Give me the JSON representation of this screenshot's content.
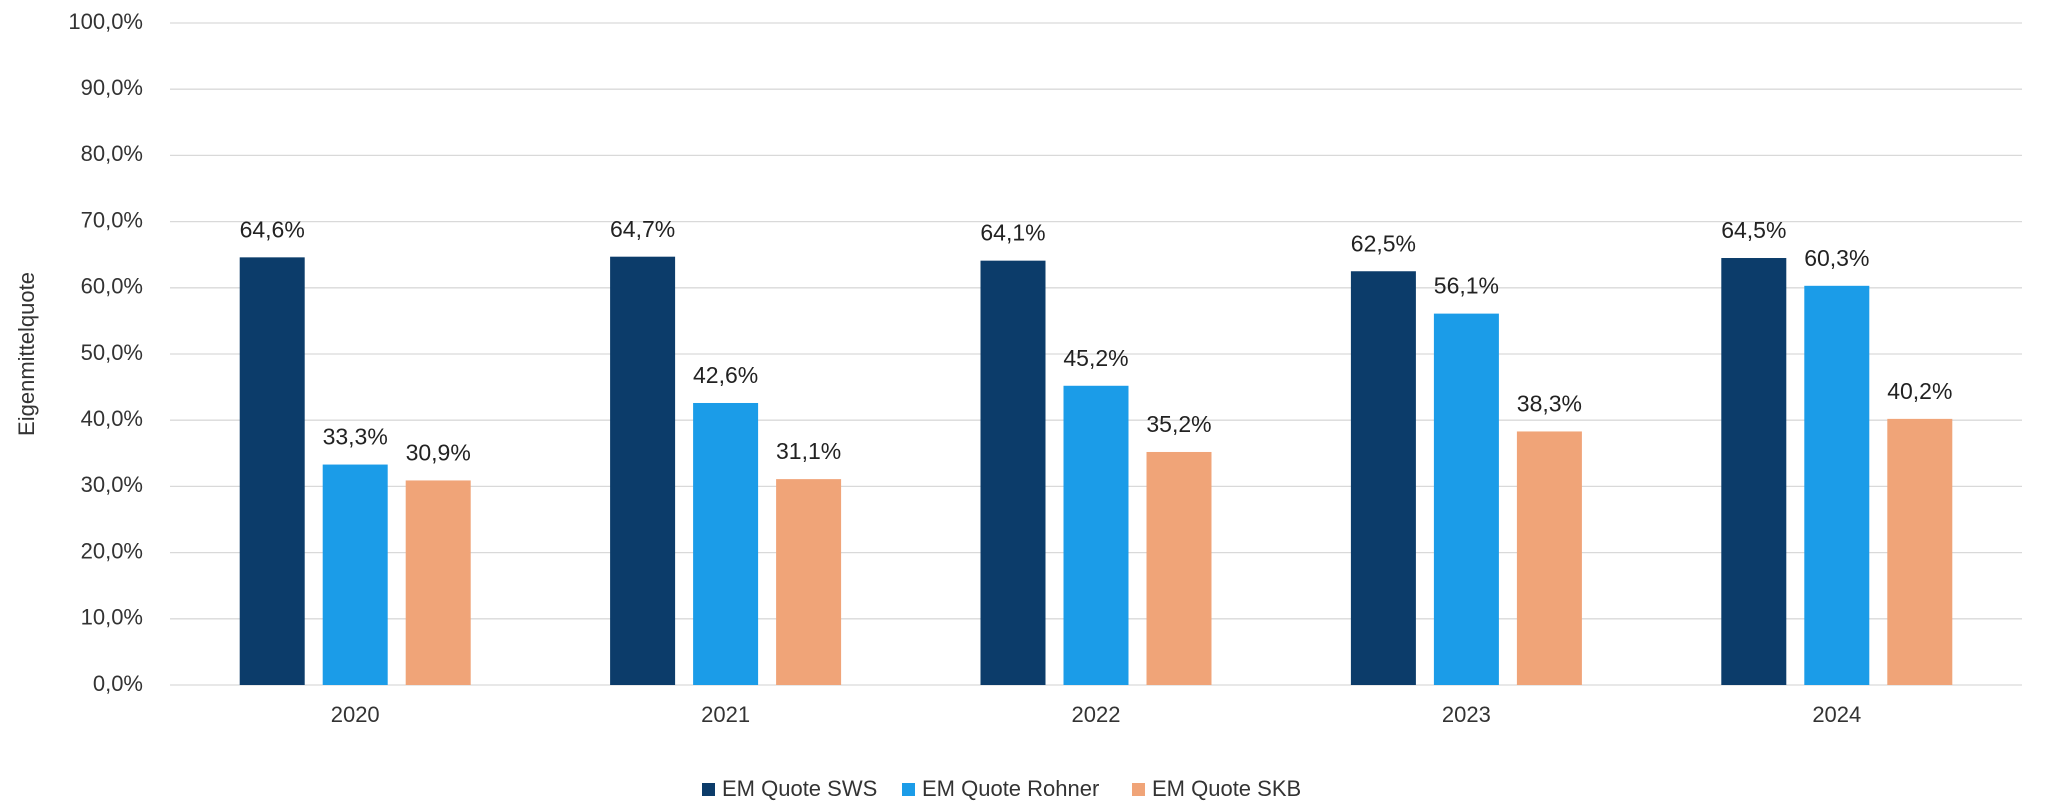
{
  "chart_data": {
    "type": "bar",
    "y_label": "Eigenmittelquote",
    "categories": [
      "2020",
      "2021",
      "2022",
      "2023",
      "2024"
    ],
    "series": [
      {
        "name": "EM Quote SWS",
        "color": "#0c3c6a",
        "values": [
          64.6,
          64.7,
          64.1,
          62.5,
          64.5
        ],
        "value_labels": [
          "64,6%",
          "64,7%",
          "64,1%",
          "62,5%",
          "64,5%"
        ]
      },
      {
        "name": "EM Quote Rohner",
        "color": "#1b9ce8",
        "values": [
          33.3,
          42.6,
          45.2,
          56.1,
          60.3
        ],
        "value_labels": [
          "33,3%",
          "42,6%",
          "45,2%",
          "56,1%",
          "60,3%"
        ]
      },
      {
        "name": "EM Quote SKB",
        "color": "#f0a478",
        "values": [
          30.9,
          31.1,
          35.2,
          38.3,
          40.2
        ],
        "value_labels": [
          "30,9%",
          "31,1%",
          "35,2%",
          "38,3%",
          "40,2%"
        ]
      }
    ],
    "ylim": [
      0,
      100
    ],
    "yticks": [
      {
        "value": 0,
        "label": "0,0%"
      },
      {
        "value": 10,
        "label": "10,0%"
      },
      {
        "value": 20,
        "label": "20,0%"
      },
      {
        "value": 30,
        "label": "30,0%"
      },
      {
        "value": 40,
        "label": "40,0%"
      },
      {
        "value": 50,
        "label": "50,0%"
      },
      {
        "value": 60,
        "label": "60,0%"
      },
      {
        "value": 70,
        "label": "70,0%"
      },
      {
        "value": 80,
        "label": "80,0%"
      },
      {
        "value": 90,
        "label": "90,0%"
      },
      {
        "value": 100,
        "label": "100,0%"
      }
    ],
    "grid": true,
    "legend": "bottom"
  }
}
